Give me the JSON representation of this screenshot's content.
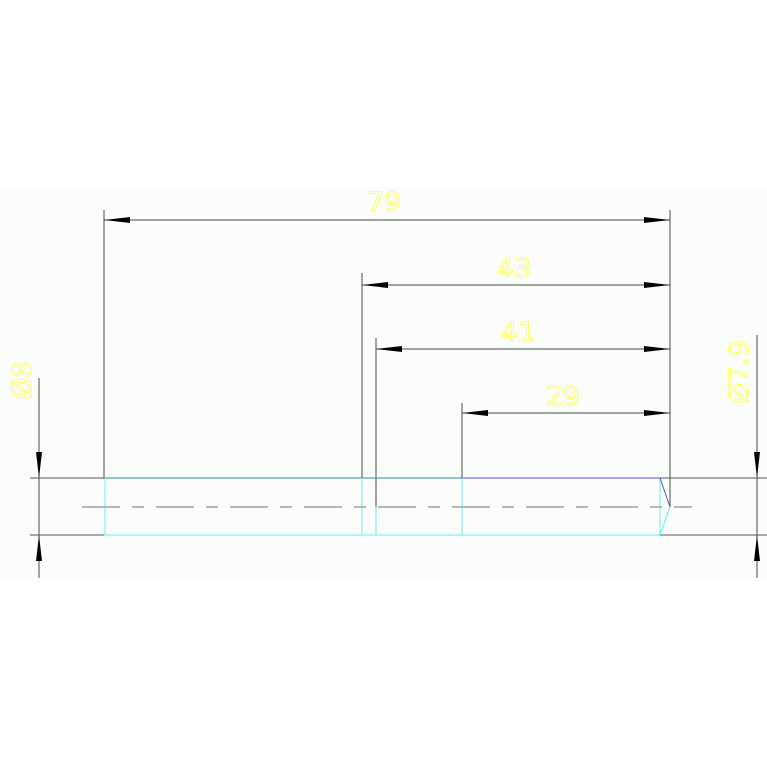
{
  "colors": {
    "dimension_text": "#ffff55",
    "outline": "#4a4a4a",
    "cyan_edge": "#66eeee",
    "blue_edge": "#5a4fd8",
    "background": "#fbfdfb"
  },
  "dimensions": {
    "overall_length": "79",
    "length_43": "43",
    "length_41": "41",
    "length_29": "29",
    "diameter_left": "Ø8",
    "diameter_right": "Ø7.9"
  }
}
